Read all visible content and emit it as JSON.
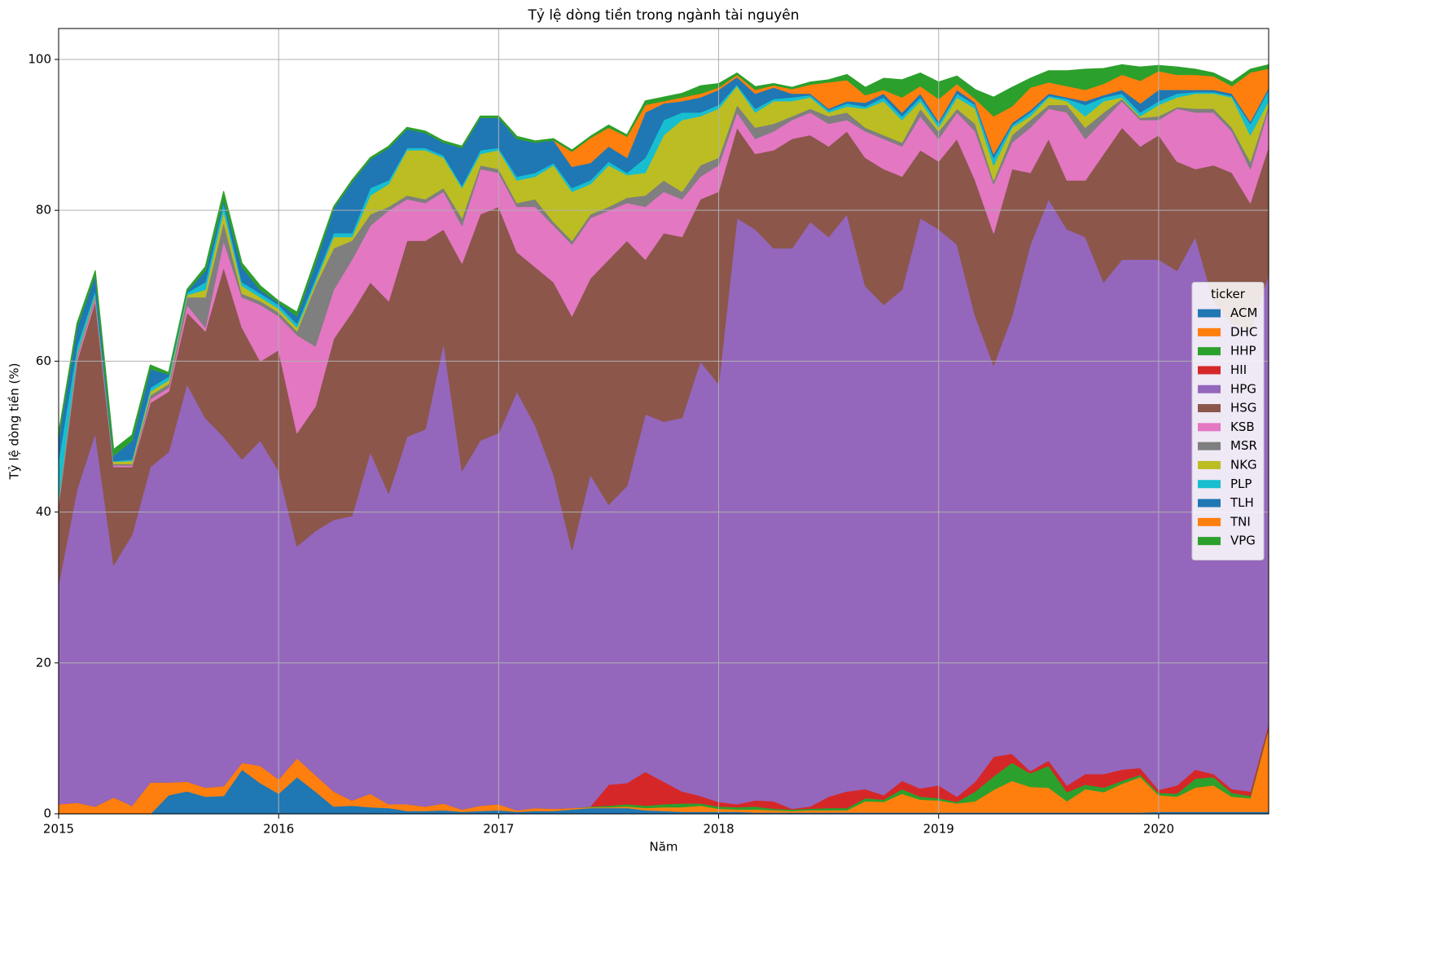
{
  "chart_data": {
    "type": "stacked-area",
    "title": "Tỷ lệ dòng tiền trong ngành tài nguyên",
    "xlabel": "Năm",
    "ylabel": "Tỷ lệ dòng tiền (%)",
    "legend_title": "ticker",
    "legend": "center right",
    "grid": true,
    "xlim": [
      2015,
      2020.5
    ],
    "xticks": [
      2015,
      2016,
      2017,
      2018,
      2019,
      2020
    ],
    "ylim": [
      0,
      104.1
    ],
    "yticks": [
      0,
      20,
      40,
      60,
      80,
      100
    ],
    "x": [
      "2015-01",
      "2015-02",
      "2015-03",
      "2015-04",
      "2015-05",
      "2015-06",
      "2015-07",
      "2015-08",
      "2015-09",
      "2015-10",
      "2015-11",
      "2015-12",
      "2016-01",
      "2016-02",
      "2016-03",
      "2016-04",
      "2016-05",
      "2016-06",
      "2016-07",
      "2016-08",
      "2016-09",
      "2016-10",
      "2016-11",
      "2016-12",
      "2017-01",
      "2017-02",
      "2017-03",
      "2017-04",
      "2017-05",
      "2017-06",
      "2017-07",
      "2017-08",
      "2017-09",
      "2017-10",
      "2017-11",
      "2017-12",
      "2018-01",
      "2018-02",
      "2018-03",
      "2018-04",
      "2018-05",
      "2018-06",
      "2018-07",
      "2018-08",
      "2018-09",
      "2018-10",
      "2018-11",
      "2018-12",
      "2019-01",
      "2019-02",
      "2019-03",
      "2019-04",
      "2019-05",
      "2019-06",
      "2019-07",
      "2019-08",
      "2019-09",
      "2019-10",
      "2019-11",
      "2019-12",
      "2020-01",
      "2020-02",
      "2020-03",
      "2020-04",
      "2020-05",
      "2020-06",
      "2020-07"
    ],
    "series": [
      {
        "name": "ACM",
        "color": "#1f77b4",
        "values": [
          0,
          0,
          0,
          0,
          0,
          0,
          2.5,
          3,
          2.3,
          2.4,
          5.9,
          4.1,
          2.7,
          4.9,
          3,
          1,
          1.1,
          0.9,
          0.8,
          0.4,
          0.4,
          0.5,
          0.3,
          0.4,
          0.5,
          0.3,
          0.4,
          0.4,
          0.6,
          0.8,
          0.8,
          0.8,
          0.5,
          0.4,
          0.3,
          0.3,
          0.3,
          0.3,
          0.2,
          0.2,
          0.2,
          0.2,
          0.2,
          0.2,
          0.2,
          0.2,
          0.2,
          0.2,
          0.2,
          0.2,
          0.2,
          0.2,
          0.2,
          0.2,
          0.2,
          0.2,
          0.2,
          0.2,
          0.2,
          0.2,
          0.3,
          0.3,
          0.3,
          0.3,
          0.3,
          0.3,
          0.3
        ]
      },
      {
        "name": "DHC",
        "color": "#ff7f0e",
        "values": [
          1.3,
          1.5,
          1,
          2.2,
          1.1,
          4.2,
          1.7,
          1.3,
          1.2,
          1.3,
          0.9,
          2.3,
          1.9,
          2.5,
          2.2,
          2,
          0.7,
          1.8,
          0.5,
          0.9,
          0.6,
          0.9,
          0.3,
          0.7,
          0.8,
          0.2,
          0.4,
          0.3,
          0.2,
          0.1,
          0.1,
          0.2,
          0.3,
          0.5,
          0.6,
          0.8,
          0.4,
          0.3,
          0.4,
          0.3,
          0.2,
          0.3,
          0.3,
          0.3,
          1.5,
          1.4,
          2.5,
          1.7,
          1.6,
          1.2,
          1.5,
          3,
          4.2,
          3.4,
          3.3,
          1.5,
          3.1,
          2.7,
          3.8,
          4.7,
          2.2,
          2,
          3.2,
          3.5,
          2,
          1.8,
          11
        ]
      },
      {
        "name": "HHP",
        "color": "#2ca02c",
        "values": [
          0,
          0,
          0,
          0,
          0,
          0,
          0,
          0,
          0,
          0,
          0,
          0,
          0,
          0,
          0,
          0,
          0,
          0,
          0,
          0,
          0,
          0,
          0,
          0,
          0,
          0,
          0,
          0,
          0,
          0.1,
          0.2,
          0.3,
          0.3,
          0.4,
          0.5,
          0.3,
          0.3,
          0.3,
          0.4,
          0.2,
          0.2,
          0.2,
          0.3,
          0.3,
          0.4,
          0.3,
          0.6,
          0.4,
          0.3,
          0.2,
          1.3,
          1.8,
          2.4,
          1.8,
          2.9,
          1.2,
          0.6,
          0.6,
          0.4,
          0.3,
          0.3,
          0.4,
          1.2,
          1.1,
          0.5,
          0.3,
          0.2
        ]
      },
      {
        "name": "HII",
        "color": "#d62728",
        "values": [
          0,
          0,
          0,
          0,
          0,
          0,
          0,
          0,
          0,
          0,
          0,
          0,
          0,
          0,
          0,
          0,
          0,
          0,
          0,
          0,
          0,
          0,
          0,
          0,
          0,
          0,
          0,
          0,
          0,
          0,
          2.8,
          2.8,
          4.5,
          3,
          1.6,
          1,
          0.6,
          0.4,
          0.8,
          1,
          0.1,
          0.3,
          1.5,
          2.2,
          1.2,
          0.6,
          1.1,
          1.1,
          1.7,
          0.7,
          1.3,
          2.6,
          1.2,
          0.3,
          0.7,
          0.9,
          1.4,
          1.8,
          1.5,
          0.9,
          0.4,
          1.1,
          1.2,
          0.4,
          0.5,
          0.6,
          0.5
        ]
      },
      {
        "name": "HPG",
        "color": "#9467bd",
        "values": [
          29.2,
          41.5,
          49.5,
          30.8,
          35.9,
          41.8,
          43.8,
          52.7,
          49,
          46.3,
          40.2,
          43.1,
          40.9,
          28.1,
          32.3,
          36,
          37.7,
          45.3,
          41.2,
          48.7,
          50,
          61.1,
          44.9,
          48.4,
          49.2,
          55.5,
          50.7,
          44.3,
          34.2,
          44,
          37.1,
          39.4,
          47.4,
          47.7,
          49.5,
          57.6,
          55.4,
          77.7,
          75.7,
          73.3,
          74.3,
          77.5,
          74.2,
          76.5,
          66.7,
          65,
          65.1,
          75.6,
          73.7,
          73.2,
          61.7,
          51.9,
          58,
          69.8,
          74.4,
          73.7,
          71.2,
          65.2,
          67.6,
          67.4,
          70.3,
          68.2,
          70.6,
          62.7,
          61.7,
          61,
          59.5
        ]
      },
      {
        "name": "HSG",
        "color": "#8c564b",
        "values": [
          10.5,
          17,
          17.5,
          13,
          9,
          8.5,
          8,
          9.5,
          11.5,
          22.5,
          17.5,
          10.5,
          16,
          15,
          16.5,
          24,
          27,
          22.5,
          25.5,
          26,
          25,
          15,
          27.5,
          30,
          30,
          18.5,
          21,
          25.5,
          31,
          26,
          32.5,
          32.5,
          20.5,
          25,
          24,
          21.5,
          25.5,
          12,
          10,
          13,
          14.5,
          11.5,
          12,
          11,
          17,
          18,
          15,
          9,
          9,
          14,
          18,
          17.5,
          19.5,
          9.5,
          8,
          6.5,
          7.5,
          17,
          17.5,
          15,
          16.5,
          14.5,
          9,
          18,
          20,
          17,
          17
        ]
      },
      {
        "name": "KSB",
        "color": "#e377c2",
        "values": [
          0.2,
          0.5,
          0.5,
          0.2,
          0.2,
          0.5,
          0.5,
          1,
          0.5,
          3.5,
          4,
          7.5,
          4.5,
          13,
          8,
          6.5,
          7,
          7.5,
          12,
          5.5,
          5,
          5,
          5,
          6,
          4.5,
          6,
          8,
          7.5,
          9.5,
          8,
          6.5,
          5,
          7,
          5.5,
          5,
          3,
          3.5,
          2,
          2,
          2.5,
          2.5,
          3,
          3,
          1.5,
          3.5,
          4,
          4,
          4.5,
          3,
          3.5,
          6.5,
          6.5,
          3.5,
          6,
          4,
          9,
          5.5,
          4.5,
          3.5,
          3.5,
          2,
          7,
          7.5,
          7,
          5.5,
          4.5,
          5
        ]
      },
      {
        "name": "MSR",
        "color": "#7f7f7f",
        "values": [
          0.2,
          0.3,
          0.3,
          0.2,
          0.2,
          0.5,
          0.5,
          1,
          4,
          2.5,
          0.5,
          0.5,
          0.5,
          0.5,
          8,
          5.5,
          2.5,
          1.5,
          0.5,
          0.5,
          0.5,
          0.5,
          1,
          0.5,
          0.5,
          0.5,
          1,
          0.5,
          0.5,
          0.5,
          0.5,
          0.7,
          1.5,
          1.5,
          1,
          1.5,
          1,
          1,
          1.5,
          1,
          0.5,
          0.5,
          1,
          1,
          0.5,
          0.5,
          0.5,
          1,
          1,
          0.5,
          1,
          0.5,
          1,
          1,
          0.5,
          1,
          1.5,
          1,
          0.3,
          0.3,
          0.5,
          0.2,
          0.5,
          0.5,
          0.5,
          1,
          0.5
        ]
      },
      {
        "name": "NKG",
        "color": "#bcbd22",
        "values": [
          0.3,
          0.2,
          0.2,
          0.3,
          0.4,
          0.5,
          0.5,
          0.3,
          1,
          1.5,
          1,
          0.5,
          0.5,
          0.5,
          0.5,
          1.5,
          0.5,
          2.5,
          3,
          6,
          6.5,
          4,
          4,
          1.5,
          2.5,
          3,
          3,
          7.5,
          6.5,
          4,
          5.5,
          3,
          3,
          6,
          9.5,
          6.5,
          6.5,
          2.5,
          2,
          3,
          2,
          1.5,
          0.5,
          0.8,
          2.5,
          4.5,
          3,
          1,
          0.5,
          1.5,
          2,
          2,
          1,
          0.5,
          1,
          0.5,
          1.5,
          1.5,
          0.2,
          0.2,
          1.5,
          1.3,
          2,
          2,
          4,
          3.5,
          0.5
        ]
      },
      {
        "name": "PLP",
        "color": "#17becf",
        "values": [
          5.3,
          1,
          0.5,
          0.1,
          0.2,
          0.5,
          0.5,
          0.3,
          1,
          1,
          0.5,
          0.5,
          0.5,
          0.5,
          0.5,
          0.5,
          0.5,
          1,
          0.5,
          0.3,
          0.3,
          0.3,
          0.3,
          0.5,
          0.3,
          0.5,
          0.5,
          0.3,
          0.5,
          0.5,
          0.5,
          0.3,
          2,
          2,
          1,
          0.5,
          0.5,
          0.2,
          0.5,
          0.3,
          0.5,
          0.3,
          0.3,
          0.4,
          0.3,
          0.5,
          0.5,
          0.5,
          0.5,
          0.5,
          0.5,
          1,
          0.3,
          0.5,
          0.2,
          0.3,
          1.5,
          0.5,
          0.5,
          0.5,
          0.5,
          0.5,
          0.2,
          0.2,
          0.2,
          1.5,
          1.5
        ]
      },
      {
        "name": "TLH",
        "color": "#1f77b4",
        "values": [
          3,
          2.5,
          2,
          0.7,
          2.5,
          2.5,
          0.3,
          0.2,
          1.5,
          0.5,
          2,
          0.5,
          0.3,
          1,
          2,
          3.3,
          6.8,
          3.8,
          4.3,
          2.5,
          2,
          1.7,
          5,
          4.3,
          4,
          5,
          4,
          3,
          2.8,
          2.3,
          2,
          2,
          6,
          2.2,
          1.5,
          2,
          2,
          1,
          2,
          1.5,
          0.5,
          0.2,
          0.2,
          0.3,
          0.5,
          0.5,
          0.5,
          0.5,
          0.3,
          0.5,
          0.3,
          0.5,
          0.3,
          0.3,
          0.3,
          0.2,
          0.5,
          0.3,
          0.5,
          1.2,
          1.5,
          0.5,
          0.3,
          0.3,
          0.3,
          0.3,
          0.3
        ]
      },
      {
        "name": "TNI",
        "color": "#ff7f0e",
        "values": [
          0,
          0,
          0,
          0,
          0,
          0,
          0,
          0,
          0,
          0,
          0,
          0,
          0,
          0,
          0,
          0,
          0,
          0,
          0,
          0,
          0,
          0,
          0,
          0,
          0,
          0,
          0,
          0,
          2,
          3.3,
          2.5,
          2.8,
          1,
          0.3,
          0.5,
          0.5,
          0.3,
          0.3,
          0.5,
          0.3,
          0.6,
          1.2,
          3.5,
          2.8,
          1,
          0.5,
          2,
          1,
          3,
          0.8,
          0.5,
          5,
          2.2,
          3,
          1.5,
          1.5,
          1.5,
          1.5,
          2,
          3,
          2.5,
          2,
          2,
          1.8,
          1,
          6.5,
          2.5
        ]
      },
      {
        "name": "VPG",
        "color": "#2ca02c",
        "values": [
          0.5,
          0.5,
          0.5,
          0.8,
          0.7,
          0.5,
          0.2,
          0.2,
          0.5,
          1,
          0.5,
          0.5,
          0.2,
          0.5,
          0.5,
          0.2,
          0.2,
          0.2,
          0.2,
          0.2,
          0.2,
          0.2,
          0.2,
          0.2,
          0.2,
          0.3,
          0.2,
          0.2,
          0.2,
          0.2,
          0.3,
          0.2,
          0.5,
          0.5,
          0.5,
          1,
          0.5,
          0.2,
          0.4,
          0.2,
          0.2,
          0.3,
          0.3,
          0.7,
          1,
          1.5,
          2.3,
          1.7,
          2.2,
          1,
          1.2,
          2.5,
          2.5,
          1.2,
          1.5,
          2,
          2.7,
          2,
          1.3,
          1.8,
          0.7,
          1,
          0.7,
          0.4,
          0.5,
          0.4,
          0.5
        ]
      }
    ]
  }
}
